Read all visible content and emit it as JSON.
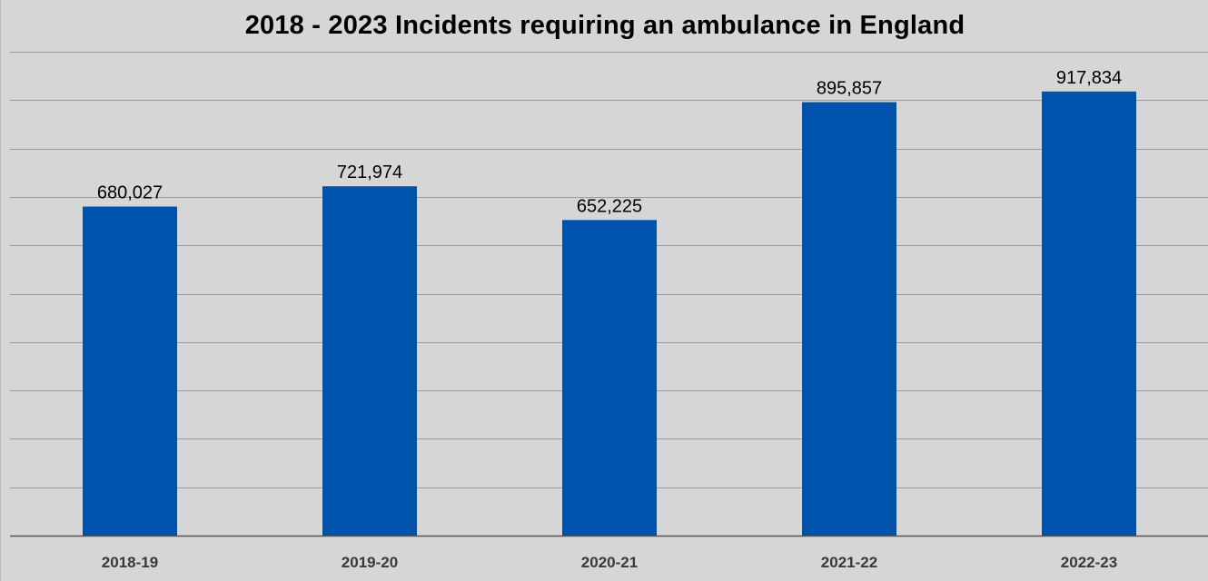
{
  "chart_data": {
    "type": "bar",
    "title": "2018 - 2023 Incidents requiring an ambulance in England",
    "categories": [
      "2018-19",
      "2019-20",
      "2020-21",
      "2021-22",
      "2022-23"
    ],
    "values": [
      680027,
      721974,
      652225,
      895857,
      917834
    ],
    "data_labels": [
      "680,027",
      "721,974",
      "652,225",
      "895,857",
      "917,834"
    ],
    "xlabel": "",
    "ylabel": "",
    "ylim": [
      0,
      1000000
    ],
    "grid": true,
    "legend": "none",
    "colors": {
      "bar": "#0053ad",
      "background": "#d6d6d6",
      "gridline": "#9e9e9e",
      "axis": "#555555"
    }
  }
}
